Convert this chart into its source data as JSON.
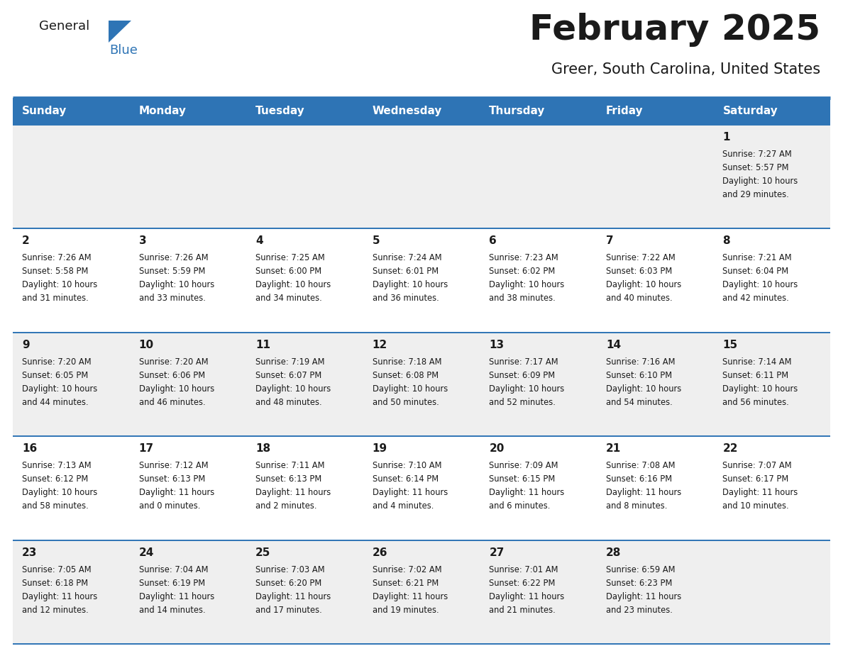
{
  "title": "February 2025",
  "subtitle": "Greer, South Carolina, United States",
  "header_bg": "#2E74B5",
  "header_text_color": "#FFFFFF",
  "row_bg_light": "#EFEFEF",
  "row_bg_white": "#FFFFFF",
  "day_headers": [
    "Sunday",
    "Monday",
    "Tuesday",
    "Wednesday",
    "Thursday",
    "Friday",
    "Saturday"
  ],
  "title_color": "#1a1a1a",
  "subtitle_color": "#1a1a1a",
  "day_num_color": "#1a1a1a",
  "cell_text_color": "#1a1a1a",
  "separator_color": "#2E74B5",
  "logo_text_color": "#1a1a1a",
  "logo_blue_color": "#2E74B5",
  "calendar_data": [
    [
      {
        "day": null,
        "info": null
      },
      {
        "day": null,
        "info": null
      },
      {
        "day": null,
        "info": null
      },
      {
        "day": null,
        "info": null
      },
      {
        "day": null,
        "info": null
      },
      {
        "day": null,
        "info": null
      },
      {
        "day": "1",
        "info": "Sunrise: 7:27 AM\nSunset: 5:57 PM\nDaylight: 10 hours\nand 29 minutes."
      }
    ],
    [
      {
        "day": "2",
        "info": "Sunrise: 7:26 AM\nSunset: 5:58 PM\nDaylight: 10 hours\nand 31 minutes."
      },
      {
        "day": "3",
        "info": "Sunrise: 7:26 AM\nSunset: 5:59 PM\nDaylight: 10 hours\nand 33 minutes."
      },
      {
        "day": "4",
        "info": "Sunrise: 7:25 AM\nSunset: 6:00 PM\nDaylight: 10 hours\nand 34 minutes."
      },
      {
        "day": "5",
        "info": "Sunrise: 7:24 AM\nSunset: 6:01 PM\nDaylight: 10 hours\nand 36 minutes."
      },
      {
        "day": "6",
        "info": "Sunrise: 7:23 AM\nSunset: 6:02 PM\nDaylight: 10 hours\nand 38 minutes."
      },
      {
        "day": "7",
        "info": "Sunrise: 7:22 AM\nSunset: 6:03 PM\nDaylight: 10 hours\nand 40 minutes."
      },
      {
        "day": "8",
        "info": "Sunrise: 7:21 AM\nSunset: 6:04 PM\nDaylight: 10 hours\nand 42 minutes."
      }
    ],
    [
      {
        "day": "9",
        "info": "Sunrise: 7:20 AM\nSunset: 6:05 PM\nDaylight: 10 hours\nand 44 minutes."
      },
      {
        "day": "10",
        "info": "Sunrise: 7:20 AM\nSunset: 6:06 PM\nDaylight: 10 hours\nand 46 minutes."
      },
      {
        "day": "11",
        "info": "Sunrise: 7:19 AM\nSunset: 6:07 PM\nDaylight: 10 hours\nand 48 minutes."
      },
      {
        "day": "12",
        "info": "Sunrise: 7:18 AM\nSunset: 6:08 PM\nDaylight: 10 hours\nand 50 minutes."
      },
      {
        "day": "13",
        "info": "Sunrise: 7:17 AM\nSunset: 6:09 PM\nDaylight: 10 hours\nand 52 minutes."
      },
      {
        "day": "14",
        "info": "Sunrise: 7:16 AM\nSunset: 6:10 PM\nDaylight: 10 hours\nand 54 minutes."
      },
      {
        "day": "15",
        "info": "Sunrise: 7:14 AM\nSunset: 6:11 PM\nDaylight: 10 hours\nand 56 minutes."
      }
    ],
    [
      {
        "day": "16",
        "info": "Sunrise: 7:13 AM\nSunset: 6:12 PM\nDaylight: 10 hours\nand 58 minutes."
      },
      {
        "day": "17",
        "info": "Sunrise: 7:12 AM\nSunset: 6:13 PM\nDaylight: 11 hours\nand 0 minutes."
      },
      {
        "day": "18",
        "info": "Sunrise: 7:11 AM\nSunset: 6:13 PM\nDaylight: 11 hours\nand 2 minutes."
      },
      {
        "day": "19",
        "info": "Sunrise: 7:10 AM\nSunset: 6:14 PM\nDaylight: 11 hours\nand 4 minutes."
      },
      {
        "day": "20",
        "info": "Sunrise: 7:09 AM\nSunset: 6:15 PM\nDaylight: 11 hours\nand 6 minutes."
      },
      {
        "day": "21",
        "info": "Sunrise: 7:08 AM\nSunset: 6:16 PM\nDaylight: 11 hours\nand 8 minutes."
      },
      {
        "day": "22",
        "info": "Sunrise: 7:07 AM\nSunset: 6:17 PM\nDaylight: 11 hours\nand 10 minutes."
      }
    ],
    [
      {
        "day": "23",
        "info": "Sunrise: 7:05 AM\nSunset: 6:18 PM\nDaylight: 11 hours\nand 12 minutes."
      },
      {
        "day": "24",
        "info": "Sunrise: 7:04 AM\nSunset: 6:19 PM\nDaylight: 11 hours\nand 14 minutes."
      },
      {
        "day": "25",
        "info": "Sunrise: 7:03 AM\nSunset: 6:20 PM\nDaylight: 11 hours\nand 17 minutes."
      },
      {
        "day": "26",
        "info": "Sunrise: 7:02 AM\nSunset: 6:21 PM\nDaylight: 11 hours\nand 19 minutes."
      },
      {
        "day": "27",
        "info": "Sunrise: 7:01 AM\nSunset: 6:22 PM\nDaylight: 11 hours\nand 21 minutes."
      },
      {
        "day": "28",
        "info": "Sunrise: 6:59 AM\nSunset: 6:23 PM\nDaylight: 11 hours\nand 23 minutes."
      },
      {
        "day": null,
        "info": null
      }
    ]
  ],
  "row_backgrounds": [
    "light",
    "white",
    "light",
    "white",
    "light"
  ]
}
